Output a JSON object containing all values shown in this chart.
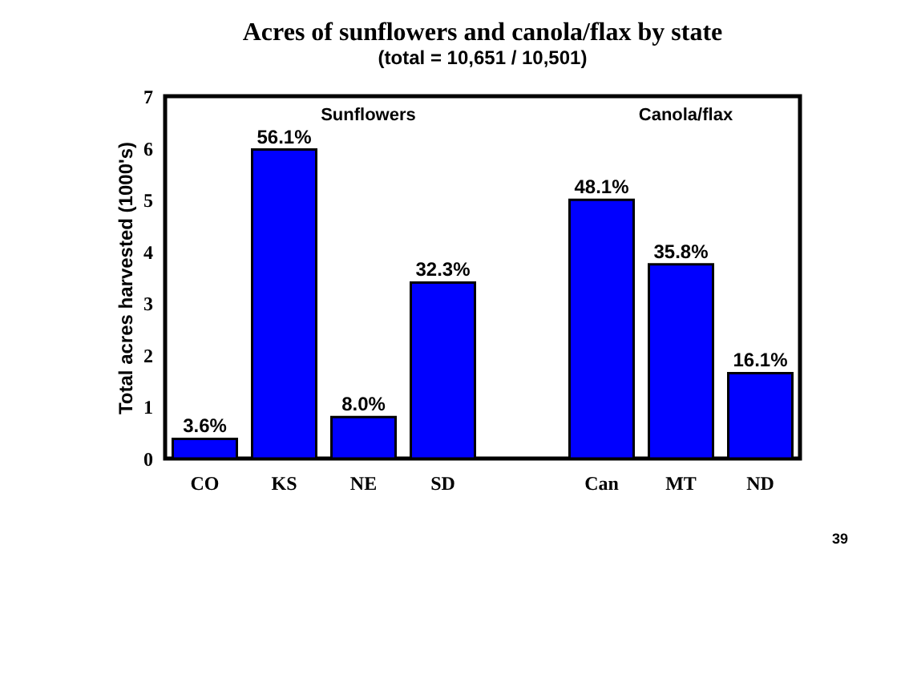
{
  "chart_data": {
    "type": "bar",
    "title": "Acres of sunflowers and canola/flax by state",
    "subtitle": "(total = 10,651 / 10,501)",
    "ylabel": "Total acres harvested (1000's)",
    "categories": [
      "CO",
      "KS",
      "NE",
      "SD",
      null,
      "Can",
      "MT",
      "ND"
    ],
    "values": [
      0.38,
      5.97,
      0.8,
      3.4,
      null,
      5.0,
      3.75,
      1.65
    ],
    "color": "#0000ff",
    "ylim": [
      0,
      7
    ],
    "yticks": [
      0,
      1,
      2,
      3,
      4,
      5,
      6,
      7
    ],
    "grid": false,
    "annotations": [
      "Sunflowers",
      "Canola/flax",
      "39",
      {
        "text": "3.6%",
        "x": "CO",
        "y": 0.38
      },
      {
        "text": "56.1%",
        "x": "KS",
        "y": 5.97
      },
      {
        "text": "8.0%",
        "x": "NE",
        "y": 0.8
      },
      {
        "text": "32.3%",
        "x": "SD",
        "y": 3.4
      },
      {
        "text": "48.1%",
        "x": "Can",
        "y": 5.0
      },
      {
        "text": "35.8%",
        "x": "MT",
        "y": 3.75
      },
      {
        "text": "16.1%",
        "x": "ND",
        "y": 1.65
      }
    ]
  }
}
